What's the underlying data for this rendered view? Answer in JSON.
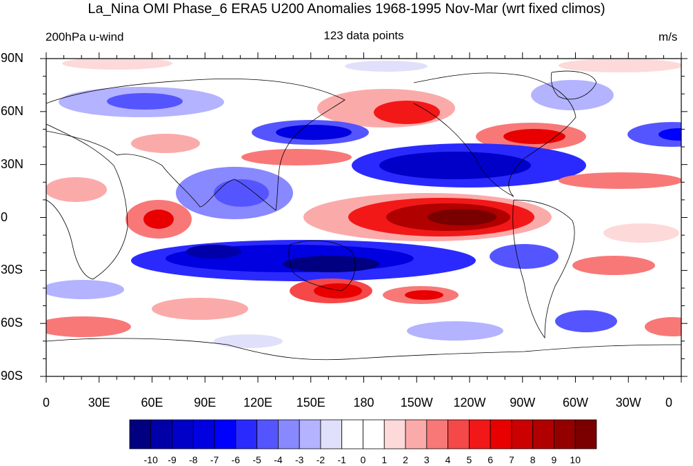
{
  "title": "La_Nina OMI Phase_6 ERA5 U200 Anomalies 1968-1995 Nov-Mar (wrt fixed climos)",
  "subtitle_left": "200hPa u-wind",
  "subtitle_center": "123 data points",
  "subtitle_right": "m/s",
  "lat_labels": [
    "90N",
    "60N",
    "30N",
    "0",
    "30S",
    "60S",
    "90S"
  ],
  "lon_labels": [
    "0",
    "30E",
    "60E",
    "90E",
    "120E",
    "150E",
    "180",
    "150W",
    "120W",
    "90W",
    "60W",
    "30W",
    "0"
  ],
  "colorbar": {
    "labels": [
      "-10",
      "-9",
      "-8",
      "-7",
      "-6",
      "-5",
      "-4",
      "-3",
      "-2",
      "-1",
      "0",
      "1",
      "2",
      "3",
      "4",
      "5",
      "6",
      "7",
      "8",
      "9",
      "10"
    ],
    "colors": [
      "#000080",
      "#0000a8",
      "#0000c8",
      "#0000e0",
      "#0000ff",
      "#2a2aff",
      "#5555ff",
      "#8888ff",
      "#b3b3ff",
      "#e0e0fa",
      "#ffffff",
      "#ffffff",
      "#fdd9d9",
      "#fbaaaa",
      "#f87878",
      "#f54848",
      "#f21818",
      "#e80000",
      "#cc0000",
      "#b00000",
      "#940000",
      "#7a0000"
    ]
  },
  "colors": {
    "land_outline": "#000000",
    "positive_anomaly": "#e80000",
    "negative_anomaly": "#0000e0"
  }
}
